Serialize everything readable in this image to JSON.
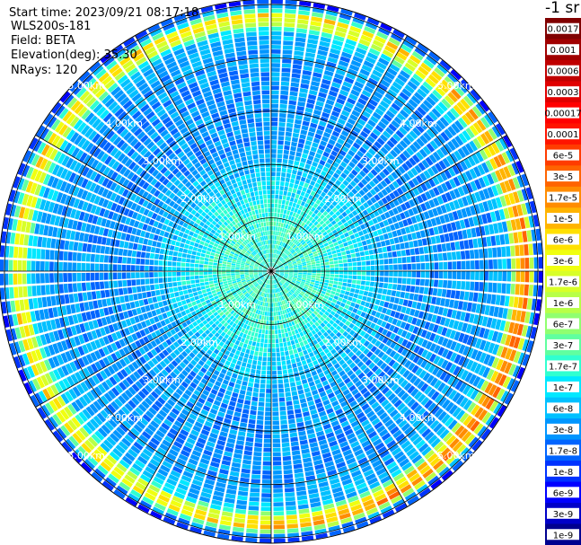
{
  "info": {
    "start_time": "Start time: 2023/09/21 08:17:18",
    "device": "WLS200s-181",
    "field": "Field: BETA",
    "elevation": "Elevation(deg): 35.30",
    "nrays": "NRays: 120"
  },
  "chart_data": {
    "type": "heatmap",
    "projection": "polar",
    "nrays": 120,
    "azimuth_lines_deg": [
      0,
      30,
      60,
      90,
      120,
      150,
      180,
      210,
      240,
      270,
      300,
      330
    ],
    "range_rings_km": [
      1.0,
      2.0,
      3.0,
      4.0,
      5.0
    ],
    "range_ring_labels": [
      "1.00km",
      "2.00km",
      "3.00km",
      "4.00km",
      "5.00km"
    ],
    "max_range_km": 5.1,
    "units_label": "-1 sr",
    "colorbar": {
      "levels": [
        "1e-9",
        "3e-9",
        "6e-9",
        "1e-8",
        "1.7e-8",
        "3e-8",
        "6e-8",
        "1e-7",
        "1.7e-7",
        "3e-7",
        "6e-7",
        "1e-6",
        "1.7e-6",
        "3e-6",
        "6e-6",
        "1e-5",
        "1.7e-5",
        "3e-5",
        "6e-5",
        "0.0001",
        "0.00017",
        "0.0003",
        "0.0006",
        "0.001",
        "0.0017"
      ],
      "colors": [
        "#00008f",
        "#0000c8",
        "#0000ff",
        "#0032ff",
        "#0064ff",
        "#0096ff",
        "#00c0ff",
        "#00e8ff",
        "#30ffd0",
        "#60ffa0",
        "#90ff70",
        "#b8ff48",
        "#d8ff28",
        "#f0ff10",
        "#ffe000",
        "#ffb400",
        "#ff8c00",
        "#ff6400",
        "#ff3c00",
        "#ff1400",
        "#ff0000",
        "#e00000",
        "#c00000",
        "#a00000",
        "#800000"
      ]
    },
    "beta_profile": {
      "range_km": [
        0.0,
        0.5,
        1.0,
        1.5,
        2.0,
        2.5,
        3.0,
        3.5,
        4.0,
        4.5,
        4.6,
        4.8,
        5.0
      ],
      "typical_value": [
        "1.7e-7",
        "1.7e-7",
        "1.7e-7",
        "1e-7",
        "6e-8",
        "3e-8",
        "3e-8",
        "3e-8",
        "3e-8",
        "6e-8",
        "3e-6",
        "1e-5",
        "1e-8"
      ]
    }
  }
}
